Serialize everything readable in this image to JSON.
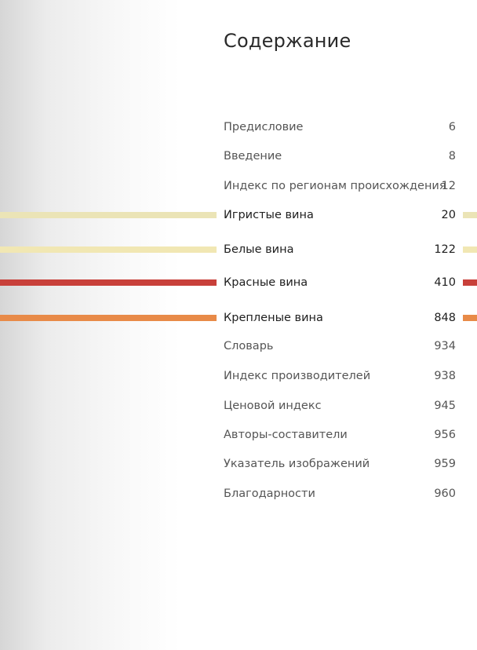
{
  "header": {
    "title": "Содержание"
  },
  "entries": [
    {
      "title": "Предисловие",
      "page": 6
    },
    {
      "title": "Введение",
      "page": 8
    },
    {
      "title": "Индекс по регионам происхождения",
      "page": 12
    },
    {
      "title": "Игристые вина",
      "page": 20
    },
    {
      "title": "Белые вина",
      "page": 122
    },
    {
      "title": "Красные вина",
      "page": 410
    },
    {
      "title": "Крепленые вина",
      "page": 848
    },
    {
      "title": "Словарь",
      "page": 934
    },
    {
      "title": "Индекс производителей",
      "page": 938
    },
    {
      "title": "Ценовой индекс",
      "page": 945
    },
    {
      "title": "Авторы-составители",
      "page": 956
    },
    {
      "title": "Указатель изображений",
      "page": 959
    },
    {
      "title": "Благодарности",
      "page": 960
    }
  ]
}
